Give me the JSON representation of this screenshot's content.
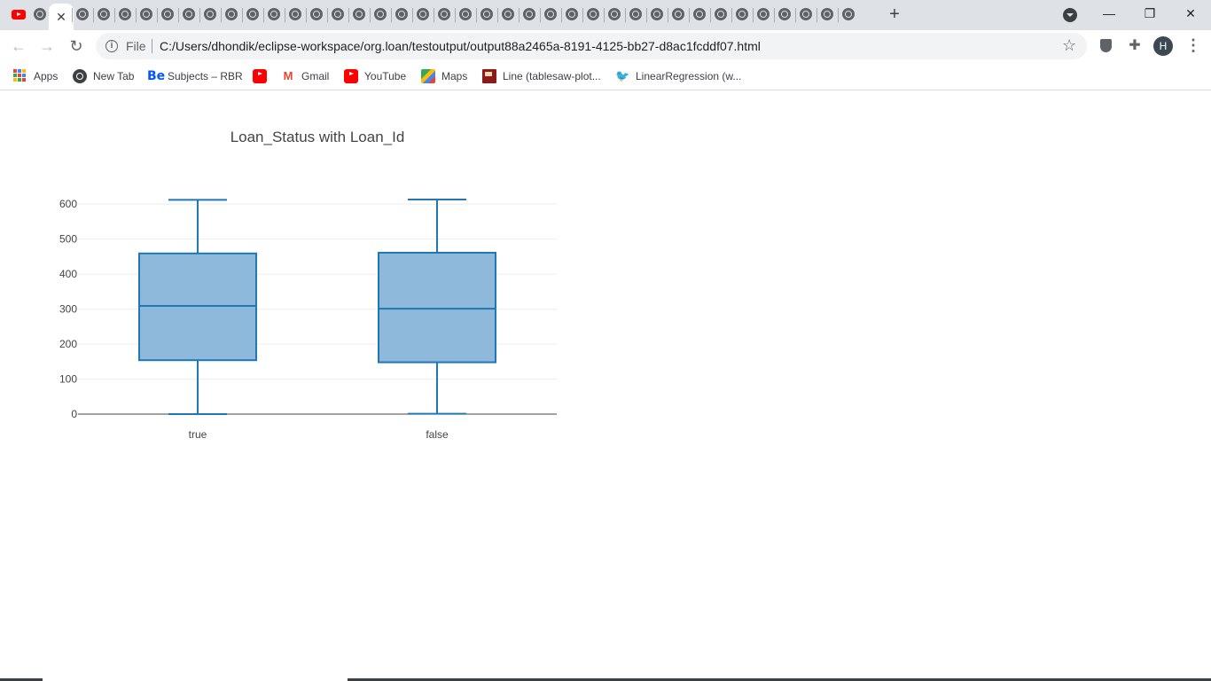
{
  "browser": {
    "active_tab_close": "✕",
    "new_tab": "+",
    "window_controls": {
      "minimize": "—",
      "restore": "❐",
      "close": "✕"
    },
    "file_label": "File",
    "url": "C:/Users/dhondik/eclipse-workspace/org.loan/testoutput/output88a2465a-8191-4125-bb27-d8ac1fcddf07.html",
    "avatar_letter": "H",
    "bookmarks": [
      {
        "label": "Apps",
        "icon": "apps-grid-icon"
      },
      {
        "label": "New Tab",
        "icon": "globe-icon"
      },
      {
        "label": "Subjects – RBR",
        "icon": "behance-icon"
      },
      {
        "label": "",
        "icon": "youtube-icon"
      },
      {
        "label": "Gmail",
        "icon": "gmail-icon"
      },
      {
        "label": "YouTube",
        "icon": "youtube-icon"
      },
      {
        "label": "Maps",
        "icon": "maps-icon"
      },
      {
        "label": "Line (tablesaw-plot...",
        "icon": "book-icon"
      },
      {
        "label": "LinearRegression (w...",
        "icon": "bird-icon"
      }
    ]
  },
  "chart_data": {
    "type": "box",
    "title": "Loan_Status with Loan_Id",
    "xlabel": "",
    "ylabel": "",
    "categories": [
      "true",
      "false"
    ],
    "boxes": [
      {
        "category": "true",
        "min": 0,
        "q1": 154,
        "median": 309,
        "q3": 459,
        "max": 612
      },
      {
        "category": "false",
        "min": 1,
        "q1": 148,
        "median": 301,
        "q3": 461,
        "max": 613
      }
    ],
    "y_ticks": [
      0,
      100,
      200,
      300,
      400,
      500,
      600
    ],
    "y_tick_labels": [
      "0",
      "100",
      "200",
      "300",
      "400",
      "500",
      "600"
    ],
    "ylim": [
      0,
      613
    ],
    "grid": true,
    "colors": {
      "line": "#1f77b4",
      "fill": "#8fb9da",
      "grid": "#eeeeee",
      "zero": "#444444"
    }
  }
}
